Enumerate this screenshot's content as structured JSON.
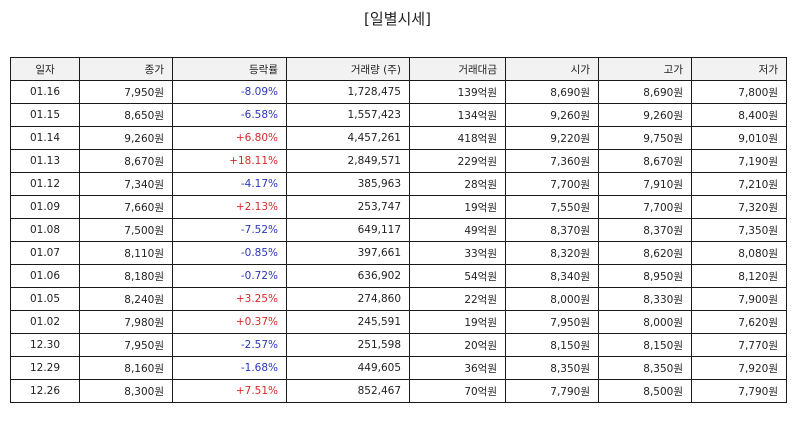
{
  "title": "[일별시세]",
  "headers": [
    "일자",
    "종가",
    "등락률",
    "거래량 (주)",
    "거래대금",
    "시가",
    "고가",
    "저가"
  ],
  "rows": [
    {
      "date": "01.16",
      "close": "7,950원",
      "change": "-8.09%",
      "direction": "down",
      "volume": "1,728,475",
      "amount": "139억원",
      "open": "8,690원",
      "high": "8,690원",
      "low": "7,800원"
    },
    {
      "date": "01.15",
      "close": "8,650원",
      "change": "-6.58%",
      "direction": "down",
      "volume": "1,557,423",
      "amount": "134억원",
      "open": "9,260원",
      "high": "9,260원",
      "low": "8,400원"
    },
    {
      "date": "01.14",
      "close": "9,260원",
      "change": "+6.80%",
      "direction": "up",
      "volume": "4,457,261",
      "amount": "418억원",
      "open": "9,220원",
      "high": "9,750원",
      "low": "9,010원"
    },
    {
      "date": "01.13",
      "close": "8,670원",
      "change": "+18.11%",
      "direction": "up",
      "volume": "2,849,571",
      "amount": "229억원",
      "open": "7,360원",
      "high": "8,670원",
      "low": "7,190원"
    },
    {
      "date": "01.12",
      "close": "7,340원",
      "change": "-4.17%",
      "direction": "down",
      "volume": "385,963",
      "amount": "28억원",
      "open": "7,700원",
      "high": "7,910원",
      "low": "7,210원"
    },
    {
      "date": "01.09",
      "close": "7,660원",
      "change": "+2.13%",
      "direction": "up",
      "volume": "253,747",
      "amount": "19억원",
      "open": "7,550원",
      "high": "7,700원",
      "low": "7,320원"
    },
    {
      "date": "01.08",
      "close": "7,500원",
      "change": "-7.52%",
      "direction": "down",
      "volume": "649,117",
      "amount": "49억원",
      "open": "8,370원",
      "high": "8,370원",
      "low": "7,350원"
    },
    {
      "date": "01.07",
      "close": "8,110원",
      "change": "-0.85%",
      "direction": "down",
      "volume": "397,661",
      "amount": "33억원",
      "open": "8,320원",
      "high": "8,620원",
      "low": "8,080원"
    },
    {
      "date": "01.06",
      "close": "8,180원",
      "change": "-0.72%",
      "direction": "down",
      "volume": "636,902",
      "amount": "54억원",
      "open": "8,340원",
      "high": "8,950원",
      "low": "8,120원"
    },
    {
      "date": "01.05",
      "close": "8,240원",
      "change": "+3.25%",
      "direction": "up",
      "volume": "274,860",
      "amount": "22억원",
      "open": "8,000원",
      "high": "8,330원",
      "low": "7,900원"
    },
    {
      "date": "01.02",
      "close": "7,980원",
      "change": "+0.37%",
      "direction": "up",
      "volume": "245,591",
      "amount": "19억원",
      "open": "7,950원",
      "high": "8,000원",
      "low": "7,620원"
    },
    {
      "date": "12.30",
      "close": "7,950원",
      "change": "-2.57%",
      "direction": "down",
      "volume": "251,598",
      "amount": "20억원",
      "open": "8,150원",
      "high": "8,150원",
      "low": "7,770원"
    },
    {
      "date": "12.29",
      "close": "8,160원",
      "change": "-1.68%",
      "direction": "down",
      "volume": "449,605",
      "amount": "36억원",
      "open": "8,350원",
      "high": "8,350원",
      "low": "7,920원"
    },
    {
      "date": "12.26",
      "close": "8,300원",
      "change": "+7.51%",
      "direction": "up",
      "volume": "852,467",
      "amount": "70억원",
      "open": "7,790원",
      "high": "8,500원",
      "low": "7,790원"
    }
  ],
  "colors": {
    "up": "#d42a2a",
    "down": "#2a36b8"
  }
}
